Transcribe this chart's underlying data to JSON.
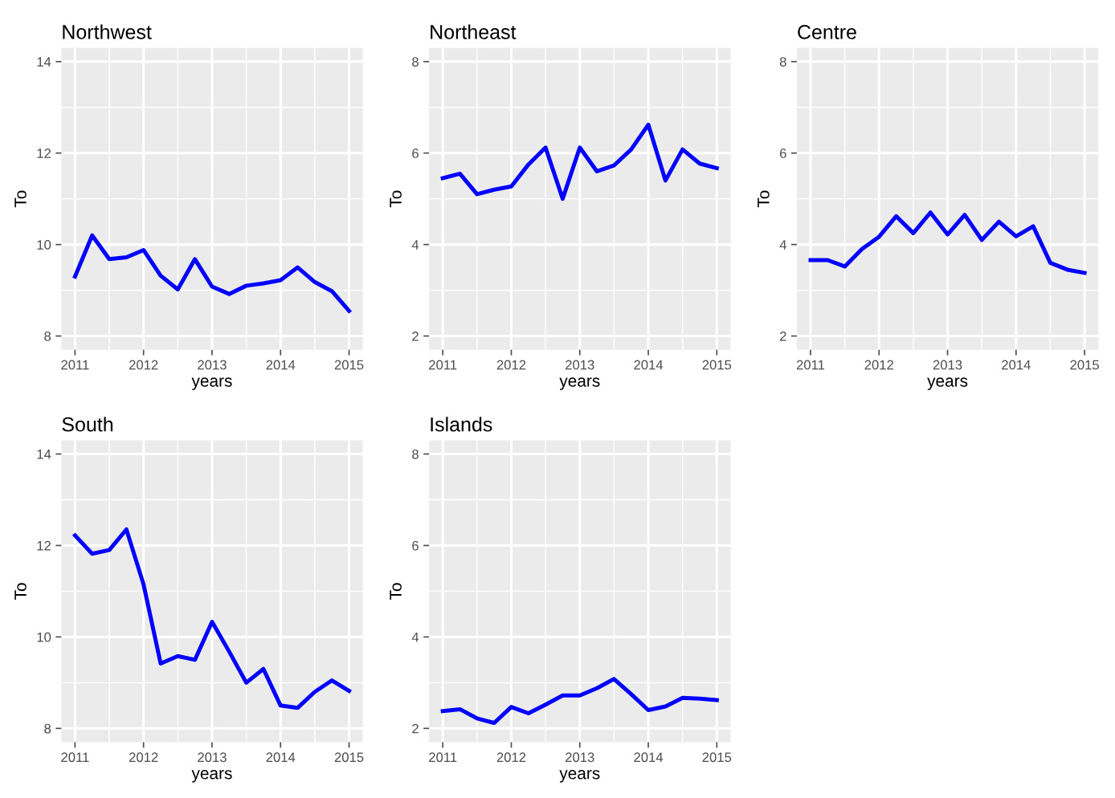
{
  "chart_data": [
    {
      "type": "line",
      "title": "Northwest",
      "xlabel": "years",
      "ylabel": "To",
      "x": [
        2011,
        2011.25,
        2011.5,
        2011.75,
        2012,
        2012.25,
        2012.5,
        2012.75,
        2013,
        2013.25,
        2013.5,
        2013.75,
        2014,
        2014.25,
        2014.5,
        2014.75,
        2015
      ],
      "series": [
        {
          "color": "#0000ff",
          "values": [
            9.3,
            10.2,
            9.68,
            9.72,
            9.88,
            9.32,
            9.02,
            9.68,
            9.08,
            8.92,
            9.1,
            9.15,
            9.22,
            9.5,
            9.18,
            8.98,
            8.55
          ]
        }
      ],
      "xlim": [
        2010.8,
        2015.2
      ],
      "xticks": [
        2011,
        2012,
        2013,
        2014,
        2015
      ],
      "ylim": [
        7.7,
        14.3
      ],
      "yticks": [
        8,
        10,
        12,
        14
      ],
      "grid": true
    },
    {
      "type": "line",
      "title": "Northeast",
      "xlabel": "years",
      "ylabel": "To",
      "x": [
        2011,
        2011.25,
        2011.5,
        2011.75,
        2012,
        2012.25,
        2012.5,
        2012.75,
        2013,
        2013.25,
        2013.5,
        2013.75,
        2014,
        2014.25,
        2014.5,
        2014.75,
        2015
      ],
      "series": [
        {
          "color": "#0000ff",
          "values": [
            5.45,
            5.55,
            5.1,
            5.2,
            5.27,
            5.75,
            6.12,
            5.0,
            6.12,
            5.6,
            5.73,
            6.08,
            6.62,
            5.4,
            6.08,
            5.77,
            5.67
          ]
        }
      ],
      "xlim": [
        2010.8,
        2015.2
      ],
      "xticks": [
        2011,
        2012,
        2013,
        2014,
        2015
      ],
      "ylim": [
        1.7,
        8.3
      ],
      "yticks": [
        2,
        4,
        6,
        8
      ],
      "grid": true
    },
    {
      "type": "line",
      "title": "Centre",
      "xlabel": "years",
      "ylabel": "To",
      "x": [
        2011,
        2011.25,
        2011.5,
        2011.75,
        2012,
        2012.25,
        2012.5,
        2012.75,
        2013,
        2013.25,
        2013.5,
        2013.75,
        2014,
        2014.25,
        2014.5,
        2014.75,
        2015
      ],
      "series": [
        {
          "color": "#0000ff",
          "values": [
            3.66,
            3.66,
            3.52,
            3.9,
            4.17,
            4.62,
            4.25,
            4.7,
            4.22,
            4.65,
            4.1,
            4.5,
            4.18,
            4.4,
            3.6,
            3.45,
            3.38
          ]
        }
      ],
      "xlim": [
        2010.8,
        2015.2
      ],
      "xticks": [
        2011,
        2012,
        2013,
        2014,
        2015
      ],
      "ylim": [
        1.7,
        8.3
      ],
      "yticks": [
        2,
        4,
        6,
        8
      ],
      "grid": true
    },
    {
      "type": "line",
      "title": "South",
      "xlabel": "years",
      "ylabel": "To",
      "x": [
        2011,
        2011.25,
        2011.5,
        2011.75,
        2012,
        2012.25,
        2012.5,
        2012.75,
        2013,
        2013.25,
        2013.5,
        2013.75,
        2014,
        2014.25,
        2014.5,
        2014.75,
        2015
      ],
      "series": [
        {
          "color": "#0000ff",
          "values": [
            12.22,
            11.82,
            11.9,
            12.35,
            11.15,
            9.42,
            9.58,
            9.5,
            10.33,
            9.68,
            9.0,
            9.3,
            8.5,
            8.45,
            8.8,
            9.05,
            8.82
          ]
        }
      ],
      "xlim": [
        2010.8,
        2015.2
      ],
      "xticks": [
        2011,
        2012,
        2013,
        2014,
        2015
      ],
      "ylim": [
        7.7,
        14.3
      ],
      "yticks": [
        8,
        10,
        12,
        14
      ],
      "grid": true
    },
    {
      "type": "line",
      "title": "Islands",
      "xlabel": "years",
      "ylabel": "To",
      "x": [
        2011,
        2011.25,
        2011.5,
        2011.75,
        2012,
        2012.25,
        2012.5,
        2012.75,
        2013,
        2013.25,
        2013.5,
        2013.75,
        2014,
        2014.25,
        2014.5,
        2014.75,
        2015
      ],
      "series": [
        {
          "color": "#0000ff",
          "values": [
            2.38,
            2.42,
            2.22,
            2.12,
            2.47,
            2.33,
            2.52,
            2.72,
            2.72,
            2.88,
            3.08,
            2.75,
            2.4,
            2.48,
            2.67,
            2.65,
            2.62
          ]
        }
      ],
      "xlim": [
        2010.8,
        2015.2
      ],
      "xticks": [
        2011,
        2012,
        2013,
        2014,
        2015
      ],
      "ylim": [
        1.7,
        8.3
      ],
      "yticks": [
        2,
        4,
        6,
        8
      ],
      "grid": true
    }
  ]
}
